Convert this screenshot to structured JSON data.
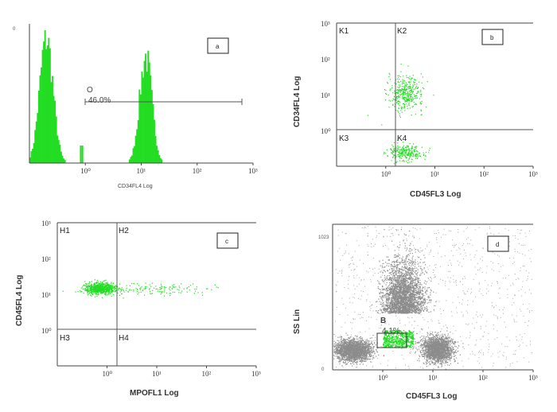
{
  "colors": {
    "events": "#22dd22",
    "events_dark": "#1aa01a",
    "gray_events": "#8c8c8c",
    "axis": "#444444"
  },
  "chart_data": [
    {
      "panel": "a",
      "type": "histogram",
      "xlabel": "CD34FL4 Log",
      "ylabel": "0",
      "xscale": "log",
      "xlim": [
        0.1,
        1000
      ],
      "x_ticks": [
        "10⁰",
        "10¹",
        "10²",
        "10³"
      ],
      "gate": {
        "label": "O",
        "percent": "46.0%",
        "range": [
          2,
          100
        ]
      },
      "peaks": [
        {
          "center": 0.2,
          "sigma_decades": 0.12,
          "height": 1.0
        },
        {
          "center": 12,
          "sigma_decades": 0.11,
          "height": 0.85
        }
      ]
    },
    {
      "panel": "b",
      "type": "scatter",
      "xlabel": "CD45FL3 Log",
      "ylabel": "CD34FL4 Log",
      "xscale": "log",
      "yscale": "log",
      "xlim": [
        0.1,
        1000
      ],
      "ylim": [
        0.1,
        1000
      ],
      "x_ticks": [
        "10⁰",
        "10¹",
        "10²",
        "10³"
      ],
      "y_ticks": [
        "10⁰",
        "10¹",
        "10²",
        "10³"
      ],
      "quadrant_divider": {
        "x": 1.5,
        "y": 1.1
      },
      "quadrants": [
        "K1",
        "K2",
        "K3",
        "K4"
      ],
      "clusters": [
        {
          "x_center": 2.5,
          "y_center": 11,
          "spread_decades": [
            0.18,
            0.25
          ]
        },
        {
          "x_center": 2.5,
          "y_center": 0.25,
          "spread_decades": [
            0.18,
            0.12
          ]
        }
      ]
    },
    {
      "panel": "c",
      "type": "scatter",
      "xlabel": "MPOFL1 Log",
      "ylabel": "CD45FL4 Log",
      "xscale": "log",
      "yscale": "log",
      "xlim": [
        0.1,
        1000
      ],
      "ylim": [
        0.1,
        1000
      ],
      "x_ticks": [
        "10⁰",
        "10¹",
        "10²",
        "10³"
      ],
      "y_ticks": [
        "10⁰",
        "10¹",
        "10²",
        "10³"
      ],
      "quadrant_divider": {
        "x": 1.4,
        "y": 1.0
      },
      "quadrants": [
        "H1",
        "H2",
        "H3",
        "H4"
      ],
      "clusters": [
        {
          "x_center": 0.7,
          "y_center": 15,
          "spread_decades": [
            0.15,
            0.08
          ]
        },
        {
          "x_center": 8,
          "y_center": 14,
          "spread_decades": [
            0.7,
            0.08
          ]
        }
      ]
    },
    {
      "panel": "d",
      "type": "scatter",
      "xlabel": "CD45FL3 Log",
      "ylabel": "SS Lin",
      "xscale": "log",
      "yscale": "linear",
      "xlim": [
        0.1,
        1000
      ],
      "ylim": [
        0,
        1023
      ],
      "x_ticks": [
        "10⁰",
        "10¹",
        "10²",
        "10³"
      ],
      "y_ticks": [
        "0",
        "1023"
      ],
      "gate": {
        "label": "B",
        "percent": "4.1%",
        "x_range": [
          1,
          4
        ],
        "y_range": [
          160,
          280
        ]
      },
      "clusters": [
        {
          "x_center": 0.25,
          "y_center": 140,
          "spread": [
            0.18,
            45
          ]
        },
        {
          "x_center": 2.5,
          "y_center": 400,
          "spread": [
            0.2,
            170
          ]
        },
        {
          "x_center": 12,
          "y_center": 150,
          "spread": [
            0.15,
            55
          ]
        }
      ]
    }
  ]
}
